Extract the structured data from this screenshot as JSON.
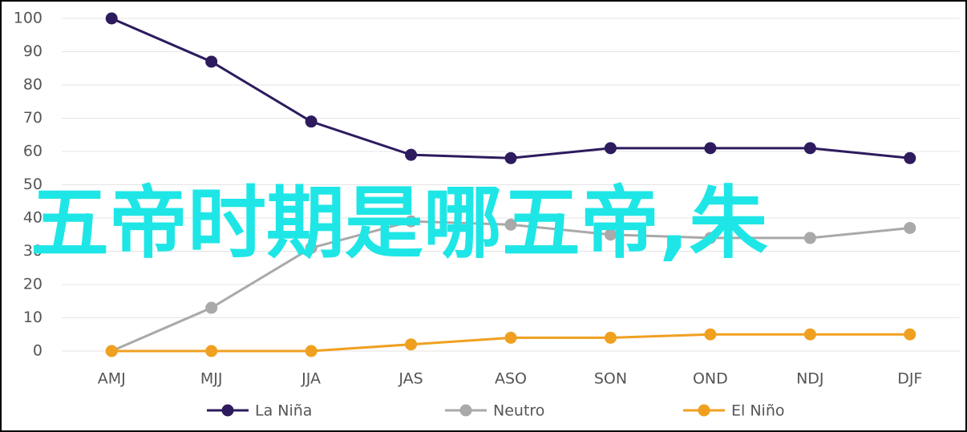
{
  "chart_data": {
    "type": "line",
    "categories": [
      "AMJ",
      "MJJ",
      "JJA",
      "JAS",
      "ASO",
      "SON",
      "OND",
      "NDJ",
      "DJF"
    ],
    "series": [
      {
        "name": "La Niña",
        "color": "#2d1b5e",
        "values": [
          100,
          87,
          69,
          59,
          58,
          61,
          61,
          61,
          58
        ]
      },
      {
        "name": "Neutro",
        "color": "#a9a9a9",
        "values": [
          0,
          13,
          31,
          39,
          38,
          35,
          34,
          34,
          37
        ]
      },
      {
        "name": "El Niño",
        "color": "#f0a020",
        "values": [
          0,
          0,
          0,
          2,
          4,
          4,
          5,
          5,
          5
        ]
      }
    ],
    "ylim": [
      0,
      100
    ],
    "yticks": [
      0,
      10,
      20,
      30,
      40,
      50,
      60,
      70,
      80,
      90,
      100
    ],
    "grid": true,
    "legend": "bottom",
    "overlay_text": "五帝时期是哪五帝,朱"
  }
}
